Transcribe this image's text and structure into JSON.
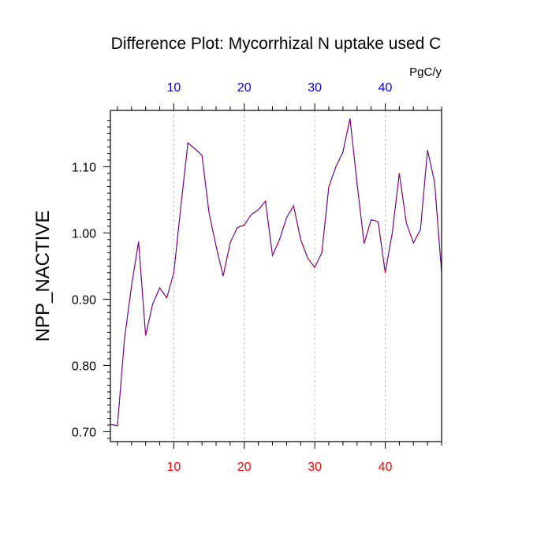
{
  "chart_data": {
    "type": "line",
    "title": "Difference Plot: Mycorrhizal N uptake used C",
    "ylabel": "NPP_NACTIVE",
    "top_axis_units": "PgC/y",
    "xlim": [
      1,
      48
    ],
    "ylim": [
      0.685,
      1.185
    ],
    "x_ticks": [
      10,
      20,
      30,
      40
    ],
    "x_tick_labels": [
      "10",
      "20",
      "30",
      "40"
    ],
    "bottom_tick_color": "#ff0000",
    "top_tick_color": "#0000ff",
    "y_ticks": [
      0.7,
      0.8,
      0.9,
      1.0,
      1.1
    ],
    "y_tick_labels": [
      "0.70",
      "0.80",
      "0.90",
      "1.00",
      "1.10"
    ],
    "x_grid": true,
    "series": [
      {
        "color": "#0000ff",
        "overlay_color": "#ff0000",
        "dash": true,
        "x": [
          1,
          2,
          3,
          4,
          5,
          6,
          7,
          8,
          9,
          10,
          11,
          12,
          13,
          14,
          15,
          16,
          17,
          18,
          19,
          20,
          21,
          22,
          23,
          24,
          25,
          26,
          27,
          28,
          29,
          30,
          31,
          32,
          33,
          34,
          35,
          36,
          37,
          38,
          39,
          40,
          41,
          42,
          43,
          44,
          45,
          46,
          47,
          48
        ],
        "values": [
          0.711,
          0.709,
          0.84,
          0.92,
          0.987,
          0.845,
          0.893,
          0.917,
          0.902,
          0.94,
          1.04,
          1.136,
          1.127,
          1.117,
          1.03,
          0.98,
          0.935,
          0.985,
          1.008,
          1.012,
          1.028,
          1.035,
          1.048,
          0.966,
          0.99,
          1.023,
          1.041,
          0.99,
          0.962,
          0.948,
          0.97,
          1.07,
          1.1,
          1.122,
          1.173,
          1.075,
          0.984,
          1.02,
          1.017,
          0.94,
          1.0,
          1.09,
          1.015,
          0.985,
          1.005,
          1.125,
          1.077,
          0.94
        ]
      }
    ]
  }
}
